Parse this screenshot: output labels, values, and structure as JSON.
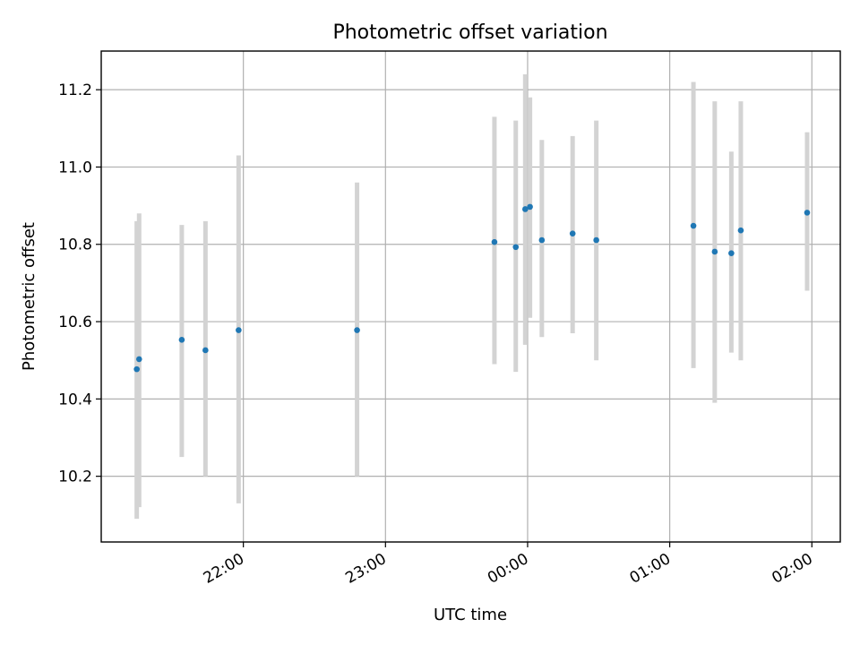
{
  "chart_data": {
    "type": "scatter",
    "title": "Photometric offset variation",
    "xlabel": "UTC time",
    "ylabel": "Photometric offset",
    "x_axis": {
      "kind": "time",
      "range": [
        "21:00",
        "02:12"
      ],
      "ticks": [
        "22:00",
        "23:00",
        "00:00",
        "01:00",
        "02:00"
      ]
    },
    "y_axis": {
      "range": [
        10.03,
        11.3
      ],
      "ticks": [
        10.2,
        10.4,
        10.6,
        10.8,
        11.0,
        11.2
      ],
      "tick_labels": [
        "10.2",
        "10.4",
        "10.6",
        "10.8",
        "11.0",
        "11.2"
      ]
    },
    "grid": true,
    "colors": {
      "marker": "#1f77b4",
      "errorbar": "#d3d3d3"
    },
    "series": [
      {
        "points": [
          {
            "time": "21:15",
            "y": 10.477,
            "ylow": 10.09,
            "yhigh": 10.86
          },
          {
            "time": "21:16",
            "y": 10.503,
            "ylow": 10.12,
            "yhigh": 10.88
          },
          {
            "time": "21:34",
            "y": 10.553,
            "ylow": 10.25,
            "yhigh": 10.85
          },
          {
            "time": "21:44",
            "y": 10.526,
            "ylow": 10.2,
            "yhigh": 10.86
          },
          {
            "time": "21:58",
            "y": 10.578,
            "ylow": 10.13,
            "yhigh": 11.03
          },
          {
            "time": "22:48",
            "y": 10.578,
            "ylow": 10.2,
            "yhigh": 10.96
          },
          {
            "time": "23:46",
            "y": 10.806,
            "ylow": 10.49,
            "yhigh": 11.13
          },
          {
            "time": "23:55",
            "y": 10.793,
            "ylow": 10.47,
            "yhigh": 11.12
          },
          {
            "time": "23:59",
            "y": 10.891,
            "ylow": 10.54,
            "yhigh": 11.24
          },
          {
            "time": "00:01",
            "y": 10.897,
            "ylow": 10.61,
            "yhigh": 11.18
          },
          {
            "time": "00:06",
            "y": 10.811,
            "ylow": 10.56,
            "yhigh": 11.07
          },
          {
            "time": "00:19",
            "y": 10.828,
            "ylow": 10.57,
            "yhigh": 11.08
          },
          {
            "time": "00:29",
            "y": 10.811,
            "ylow": 10.5,
            "yhigh": 11.12
          },
          {
            "time": "01:10",
            "y": 10.848,
            "ylow": 10.48,
            "yhigh": 11.22
          },
          {
            "time": "01:19",
            "y": 10.781,
            "ylow": 10.39,
            "yhigh": 11.17
          },
          {
            "time": "01:26",
            "y": 10.777,
            "ylow": 10.52,
            "yhigh": 11.04
          },
          {
            "time": "01:30",
            "y": 10.836,
            "ylow": 10.5,
            "yhigh": 11.17
          },
          {
            "time": "01:58",
            "y": 10.882,
            "ylow": 10.68,
            "yhigh": 11.09
          }
        ]
      }
    ]
  }
}
